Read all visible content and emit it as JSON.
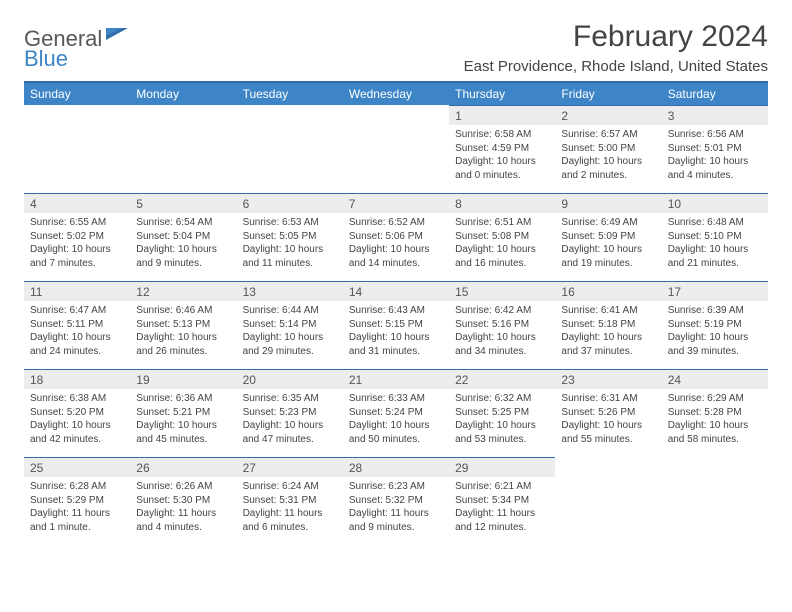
{
  "logo": {
    "word1": "General",
    "word2": "Blue"
  },
  "header": {
    "month_title": "February 2024",
    "location": "East Providence, Rhode Island, United States"
  },
  "colors": {
    "header_bg": "#3d85c6",
    "rule": "#2f6ea8",
    "daynum_bg": "#ededed",
    "text": "#444444"
  },
  "fonts": {
    "month_title_pt": 30,
    "location_pt": 15,
    "dayheader_pt": 12,
    "body_pt": 10
  },
  "day_headers": [
    "Sunday",
    "Monday",
    "Tuesday",
    "Wednesday",
    "Thursday",
    "Friday",
    "Saturday"
  ],
  "weeks": [
    [
      null,
      null,
      null,
      null,
      {
        "n": "1",
        "sr": "Sunrise: 6:58 AM",
        "ss": "Sunset: 4:59 PM",
        "d1": "Daylight: 10 hours",
        "d2": "and 0 minutes."
      },
      {
        "n": "2",
        "sr": "Sunrise: 6:57 AM",
        "ss": "Sunset: 5:00 PM",
        "d1": "Daylight: 10 hours",
        "d2": "and 2 minutes."
      },
      {
        "n": "3",
        "sr": "Sunrise: 6:56 AM",
        "ss": "Sunset: 5:01 PM",
        "d1": "Daylight: 10 hours",
        "d2": "and 4 minutes."
      }
    ],
    [
      {
        "n": "4",
        "sr": "Sunrise: 6:55 AM",
        "ss": "Sunset: 5:02 PM",
        "d1": "Daylight: 10 hours",
        "d2": "and 7 minutes."
      },
      {
        "n": "5",
        "sr": "Sunrise: 6:54 AM",
        "ss": "Sunset: 5:04 PM",
        "d1": "Daylight: 10 hours",
        "d2": "and 9 minutes."
      },
      {
        "n": "6",
        "sr": "Sunrise: 6:53 AM",
        "ss": "Sunset: 5:05 PM",
        "d1": "Daylight: 10 hours",
        "d2": "and 11 minutes."
      },
      {
        "n": "7",
        "sr": "Sunrise: 6:52 AM",
        "ss": "Sunset: 5:06 PM",
        "d1": "Daylight: 10 hours",
        "d2": "and 14 minutes."
      },
      {
        "n": "8",
        "sr": "Sunrise: 6:51 AM",
        "ss": "Sunset: 5:08 PM",
        "d1": "Daylight: 10 hours",
        "d2": "and 16 minutes."
      },
      {
        "n": "9",
        "sr": "Sunrise: 6:49 AM",
        "ss": "Sunset: 5:09 PM",
        "d1": "Daylight: 10 hours",
        "d2": "and 19 minutes."
      },
      {
        "n": "10",
        "sr": "Sunrise: 6:48 AM",
        "ss": "Sunset: 5:10 PM",
        "d1": "Daylight: 10 hours",
        "d2": "and 21 minutes."
      }
    ],
    [
      {
        "n": "11",
        "sr": "Sunrise: 6:47 AM",
        "ss": "Sunset: 5:11 PM",
        "d1": "Daylight: 10 hours",
        "d2": "and 24 minutes."
      },
      {
        "n": "12",
        "sr": "Sunrise: 6:46 AM",
        "ss": "Sunset: 5:13 PM",
        "d1": "Daylight: 10 hours",
        "d2": "and 26 minutes."
      },
      {
        "n": "13",
        "sr": "Sunrise: 6:44 AM",
        "ss": "Sunset: 5:14 PM",
        "d1": "Daylight: 10 hours",
        "d2": "and 29 minutes."
      },
      {
        "n": "14",
        "sr": "Sunrise: 6:43 AM",
        "ss": "Sunset: 5:15 PM",
        "d1": "Daylight: 10 hours",
        "d2": "and 31 minutes."
      },
      {
        "n": "15",
        "sr": "Sunrise: 6:42 AM",
        "ss": "Sunset: 5:16 PM",
        "d1": "Daylight: 10 hours",
        "d2": "and 34 minutes."
      },
      {
        "n": "16",
        "sr": "Sunrise: 6:41 AM",
        "ss": "Sunset: 5:18 PM",
        "d1": "Daylight: 10 hours",
        "d2": "and 37 minutes."
      },
      {
        "n": "17",
        "sr": "Sunrise: 6:39 AM",
        "ss": "Sunset: 5:19 PM",
        "d1": "Daylight: 10 hours",
        "d2": "and 39 minutes."
      }
    ],
    [
      {
        "n": "18",
        "sr": "Sunrise: 6:38 AM",
        "ss": "Sunset: 5:20 PM",
        "d1": "Daylight: 10 hours",
        "d2": "and 42 minutes."
      },
      {
        "n": "19",
        "sr": "Sunrise: 6:36 AM",
        "ss": "Sunset: 5:21 PM",
        "d1": "Daylight: 10 hours",
        "d2": "and 45 minutes."
      },
      {
        "n": "20",
        "sr": "Sunrise: 6:35 AM",
        "ss": "Sunset: 5:23 PM",
        "d1": "Daylight: 10 hours",
        "d2": "and 47 minutes."
      },
      {
        "n": "21",
        "sr": "Sunrise: 6:33 AM",
        "ss": "Sunset: 5:24 PM",
        "d1": "Daylight: 10 hours",
        "d2": "and 50 minutes."
      },
      {
        "n": "22",
        "sr": "Sunrise: 6:32 AM",
        "ss": "Sunset: 5:25 PM",
        "d1": "Daylight: 10 hours",
        "d2": "and 53 minutes."
      },
      {
        "n": "23",
        "sr": "Sunrise: 6:31 AM",
        "ss": "Sunset: 5:26 PM",
        "d1": "Daylight: 10 hours",
        "d2": "and 55 minutes."
      },
      {
        "n": "24",
        "sr": "Sunrise: 6:29 AM",
        "ss": "Sunset: 5:28 PM",
        "d1": "Daylight: 10 hours",
        "d2": "and 58 minutes."
      }
    ],
    [
      {
        "n": "25",
        "sr": "Sunrise: 6:28 AM",
        "ss": "Sunset: 5:29 PM",
        "d1": "Daylight: 11 hours",
        "d2": "and 1 minute."
      },
      {
        "n": "26",
        "sr": "Sunrise: 6:26 AM",
        "ss": "Sunset: 5:30 PM",
        "d1": "Daylight: 11 hours",
        "d2": "and 4 minutes."
      },
      {
        "n": "27",
        "sr": "Sunrise: 6:24 AM",
        "ss": "Sunset: 5:31 PM",
        "d1": "Daylight: 11 hours",
        "d2": "and 6 minutes."
      },
      {
        "n": "28",
        "sr": "Sunrise: 6:23 AM",
        "ss": "Sunset: 5:32 PM",
        "d1": "Daylight: 11 hours",
        "d2": "and 9 minutes."
      },
      {
        "n": "29",
        "sr": "Sunrise: 6:21 AM",
        "ss": "Sunset: 5:34 PM",
        "d1": "Daylight: 11 hours",
        "d2": "and 12 minutes."
      },
      null,
      null
    ]
  ]
}
